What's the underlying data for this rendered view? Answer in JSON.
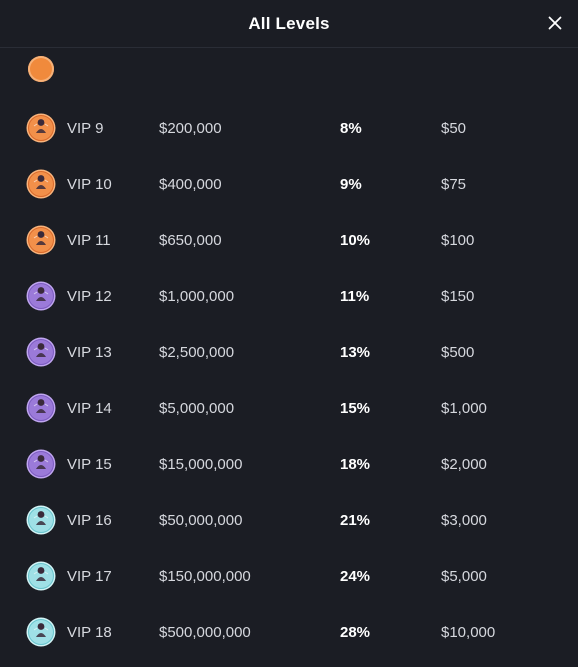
{
  "header": {
    "title": "All Levels"
  },
  "colors": {
    "background": "#1b1d24",
    "orange_tier": "#f2904a",
    "purple_tier": "#9b7ad9",
    "teal_tier": "#9fe0e6"
  },
  "icons": {
    "close": "close-icon",
    "badge": "vip-badge-icon"
  },
  "levels": [
    {
      "level": "VIP 9",
      "wager": "$200,000",
      "rakeback": "8%",
      "reward": "$50",
      "tier": "orange",
      "badge_num": "9"
    },
    {
      "level": "VIP 10",
      "wager": "$400,000",
      "rakeback": "9%",
      "reward": "$75",
      "tier": "orange",
      "badge_num": "10"
    },
    {
      "level": "VIP 11",
      "wager": "$650,000",
      "rakeback": "10%",
      "reward": "$100",
      "tier": "orange",
      "badge_num": "11"
    },
    {
      "level": "VIP 12",
      "wager": "$1,000,000",
      "rakeback": "11%",
      "reward": "$150",
      "tier": "purple",
      "badge_num": "12"
    },
    {
      "level": "VIP 13",
      "wager": "$2,500,000",
      "rakeback": "13%",
      "reward": "$500",
      "tier": "purple",
      "badge_num": "13"
    },
    {
      "level": "VIP 14",
      "wager": "$5,000,000",
      "rakeback": "15%",
      "reward": "$1,000",
      "tier": "purple",
      "badge_num": "14"
    },
    {
      "level": "VIP 15",
      "wager": "$15,000,000",
      "rakeback": "18%",
      "reward": "$2,000",
      "tier": "purple",
      "badge_num": "15"
    },
    {
      "level": "VIP 16",
      "wager": "$50,000,000",
      "rakeback": "21%",
      "reward": "$3,000",
      "tier": "teal",
      "badge_num": "16"
    },
    {
      "level": "VIP 17",
      "wager": "$150,000,000",
      "rakeback": "24%",
      "reward": "$5,000",
      "tier": "teal",
      "badge_num": "17"
    },
    {
      "level": "VIP 18",
      "wager": "$500,000,000",
      "rakeback": "28%",
      "reward": "$10,000",
      "tier": "teal",
      "badge_num": "18"
    }
  ]
}
